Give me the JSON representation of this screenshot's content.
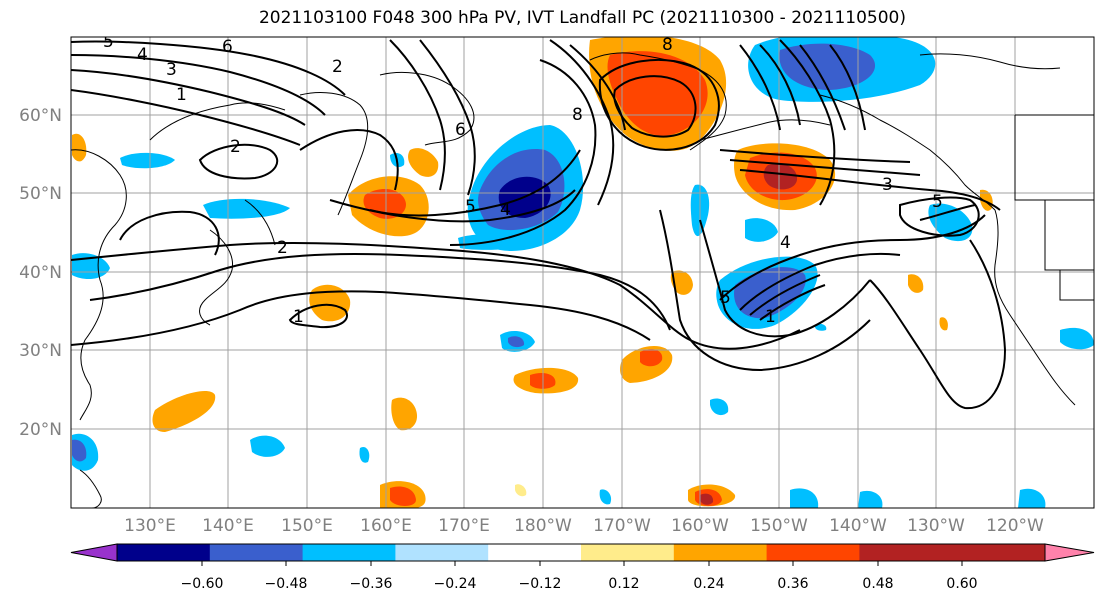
{
  "title": "2021103100 F048 300 hPa PV, IVT Landfall PC (2021110300 - 2021110500)",
  "lat_labels": [
    "60°N",
    "50°N",
    "40°N",
    "30°N",
    "20°N"
  ],
  "lon_labels": [
    "130°E",
    "140°E",
    "150°E",
    "160°E",
    "170°E",
    "180°W",
    "170°W",
    "160°W",
    "150°W",
    "140°W",
    "130°W",
    "120°W"
  ],
  "colorbar": {
    "colors": [
      "#9932cc",
      "#00008b",
      "#3a5fcd",
      "#00bfff",
      "#b0e2ff",
      "#ffffff",
      "#ffec8b",
      "#ffa500",
      "#ff4500",
      "#b22222",
      "#ff82ab"
    ],
    "tick_labels": [
      "−0.60",
      "−0.48",
      "−0.36",
      "−0.24",
      "−0.12",
      "0.12",
      "0.24",
      "0.36",
      "0.48",
      "0.60"
    ]
  },
  "contour_labels": [
    "5",
    "4",
    "3",
    "1",
    "6",
    "2",
    "2",
    "6",
    "8",
    "8",
    "5",
    "4",
    "2",
    "1",
    "3",
    "5",
    "4",
    "5",
    "1"
  ]
}
